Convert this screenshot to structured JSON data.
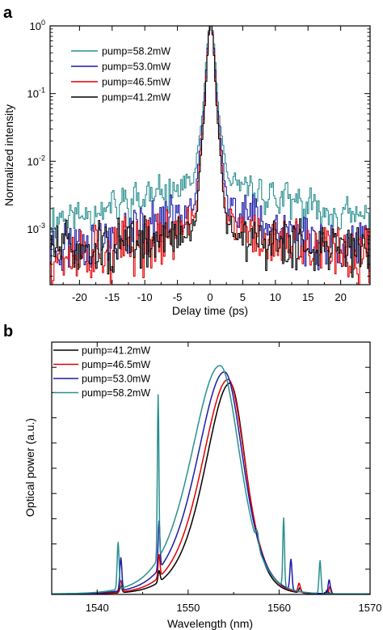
{
  "chart_data": [
    {
      "panel_label": "a",
      "type": "line",
      "xlabel": "Delay time (ps)",
      "ylabel": "Normalized intensity",
      "xlim": [
        -24.5,
        24.5
      ],
      "ylim": [
        0.00015,
        1.0
      ],
      "y_scale": "log",
      "x_ticks": [
        -20,
        -15,
        -10,
        -5,
        0,
        5,
        10,
        15,
        20
      ],
      "x_tick_labels": [
        "-20",
        "-15",
        "-10",
        "-5",
        "0",
        "5",
        "10",
        "15",
        "20"
      ],
      "y_ticks": [
        {
          "value": 1,
          "mantissa": "10",
          "exponent": "0"
        },
        {
          "value": 0.1,
          "mantissa": "10",
          "exponent": "-1"
        },
        {
          "value": 0.01,
          "mantissa": "10",
          "exponent": "-2"
        },
        {
          "value": 0.001,
          "mantissa": "10",
          "exponent": "-3"
        }
      ],
      "grid": false,
      "legend_position": "top-left",
      "series": [
        {
          "name": "pump=58.2mW",
          "color": "#2a8f8f",
          "core_width": 0.55,
          "bg_floor": 0.001,
          "bg_peak": 0.0055,
          "bg_decay": 9.5,
          "mod_period": 1.9,
          "mod_depth": 0.32,
          "noise": 0.45,
          "seed": 11
        },
        {
          "name": "pump=53.0mW",
          "color": "#1a1aa8",
          "core_width": 0.5,
          "bg_floor": 0.00045,
          "bg_peak": 0.0028,
          "bg_decay": 7.0,
          "mod_period": 1.7,
          "mod_depth": 0.28,
          "noise": 0.75,
          "seed": 23
        },
        {
          "name": "pump=46.5mW",
          "color": "#e00000",
          "core_width": 0.46,
          "bg_floor": 0.00042,
          "bg_peak": 0.0013,
          "bg_decay": 5.5,
          "mod_period": 1.6,
          "mod_depth": 0.28,
          "noise": 0.8,
          "seed": 37
        },
        {
          "name": "pump=41.2mW",
          "color": "#000000",
          "core_width": 0.44,
          "bg_floor": 0.00055,
          "bg_peak": 0.0009,
          "bg_decay": 4.0,
          "mod_period": 1.6,
          "mod_depth": 0.25,
          "noise": 0.65,
          "seed": 51
        }
      ]
    },
    {
      "panel_label": "b",
      "type": "line",
      "xlabel": "Wavelength (nm)",
      "ylabel": "Optical power (a.u.)",
      "xlim": [
        1535,
        1570
      ],
      "ylim": [
        0,
        1.0
      ],
      "x_ticks": [
        1540,
        1550,
        1560,
        1570
      ],
      "x_tick_labels": [
        "1540",
        "1550",
        "1560",
        "1570"
      ],
      "y_ticks_unlabeled": [
        0.1,
        0.2,
        0.3,
        0.4,
        0.5,
        0.6,
        0.7,
        0.8,
        0.9
      ],
      "grid": false,
      "legend_position": "top-left",
      "series": [
        {
          "name": "pump=41.2mW",
          "color": "#000000",
          "main_center": 1554.6,
          "main_peak": 0.835,
          "main_width": 2.8,
          "skew": 0.32,
          "sidebands": [
            [
              1542.6,
              0.025,
              0.18
            ],
            [
              1546.8,
              0.045,
              0.16
            ],
            [
              1562.3,
              0.02,
              0.18
            ],
            [
              1565.3,
              0.015,
              0.18
            ]
          ],
          "pedestal": 0.0
        },
        {
          "name": "pump=46.5mW",
          "color": "#e00000",
          "main_center": 1554.4,
          "main_peak": 0.85,
          "main_width": 3.0,
          "skew": 0.3,
          "sidebands": [
            [
              1542.6,
              0.045,
              0.17
            ],
            [
              1546.8,
              0.09,
              0.15
            ],
            [
              1562.2,
              0.035,
              0.17
            ],
            [
              1565.6,
              0.03,
              0.17
            ]
          ],
          "pedestal": 0.0
        },
        {
          "name": "pump=53.0mW",
          "color": "#1a1aa8",
          "main_center": 1554.0,
          "main_peak": 0.88,
          "main_width": 3.2,
          "skew": 0.28,
          "sidebands": [
            [
              1542.6,
              0.13,
              0.16
            ],
            [
              1546.8,
              0.19,
              0.14
            ],
            [
              1561.3,
              0.12,
              0.16
            ],
            [
              1565.5,
              0.055,
              0.16
            ]
          ],
          "pedestal": 0.0
        },
        {
          "name": "pump=58.2mW",
          "color": "#2a8f8f",
          "main_center": 1553.5,
          "main_peak": 0.905,
          "main_width": 3.4,
          "skew": 0.26,
          "sidebands": [
            [
              1542.3,
              0.185,
              0.15
            ],
            [
              1546.7,
              0.65,
              0.12
            ],
            [
              1557.6,
              0.05,
              0.2
            ],
            [
              1560.5,
              0.27,
              0.13
            ],
            [
              1564.5,
              0.13,
              0.15
            ]
          ],
          "pedestal": 0.0
        }
      ]
    }
  ]
}
